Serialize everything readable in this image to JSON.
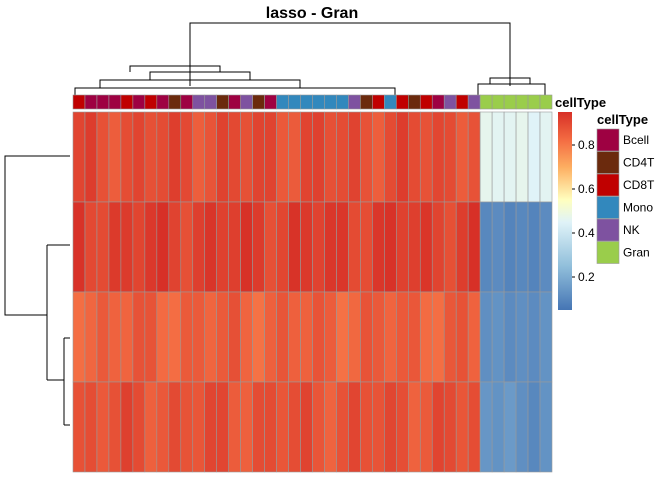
{
  "chart_data": {
    "type": "heatmap",
    "title": "lasso - Gran",
    "annotation_title": "cellType",
    "column_cell_types": [
      "CD8T",
      "Bcell",
      "Bcell",
      "Bcell",
      "CD8T",
      "Bcell",
      "CD8T",
      "Bcell",
      "CD4T",
      "Bcell",
      "NK",
      "NK",
      "CD4T",
      "Bcell",
      "NK",
      "CD4T",
      "Bcell",
      "Mono",
      "Mono",
      "Mono",
      "Mono",
      "Mono",
      "Mono",
      "NK",
      "CD4T",
      "CD8T",
      "Mono",
      "CD8T",
      "CD4T",
      "CD8T",
      "Bcell",
      "NK",
      "CD8T",
      "NK",
      "Gran",
      "Gran",
      "Gran",
      "Gran",
      "Gran",
      "Gran"
    ],
    "rows": [
      {
        "base": 0.89,
        "gran_values": [
          0.47,
          0.46,
          0.46,
          0.47,
          0.45,
          0.46
        ]
      },
      {
        "base": 0.92,
        "gran_values": [
          0.1,
          0.11,
          0.09,
          0.1,
          0.09,
          0.11
        ]
      },
      {
        "base": 0.85,
        "gran_values": [
          0.12,
          0.13,
          0.11,
          0.12,
          0.11,
          0.13
        ]
      },
      {
        "base": 0.88,
        "gran_values": [
          0.14,
          0.13,
          0.15,
          0.12,
          0.1,
          0.13
        ]
      }
    ],
    "color_scale": {
      "min": 0.05,
      "max": 0.95,
      "stops": [
        {
          "value": 0.05,
          "color": "#4575b4"
        },
        {
          "value": 0.25,
          "color": "#91bfdb"
        },
        {
          "value": 0.45,
          "color": "#e0f3f8"
        },
        {
          "value": 0.55,
          "color": "#ffffbf"
        },
        {
          "value": 0.7,
          "color": "#fdae61"
        },
        {
          "value": 0.82,
          "color": "#f46d43"
        },
        {
          "value": 0.95,
          "color": "#d73027"
        }
      ],
      "ticks": [
        0.2,
        0.4,
        0.6,
        0.8
      ],
      "tick_labels": [
        "0.2",
        "0.4",
        "0.6",
        "0.8"
      ]
    },
    "cell_types": [
      {
        "name": "Bcell",
        "color": "#9e0142"
      },
      {
        "name": "CD4T",
        "color": "#6b2a0d"
      },
      {
        "name": "CD8T",
        "color": "#c00000"
      },
      {
        "name": "Mono",
        "color": "#3288bd"
      },
      {
        "name": "NK",
        "color": "#7e52a0"
      },
      {
        "name": "Gran",
        "color": "#9acd4b"
      }
    ],
    "grid_color": "#999999"
  }
}
